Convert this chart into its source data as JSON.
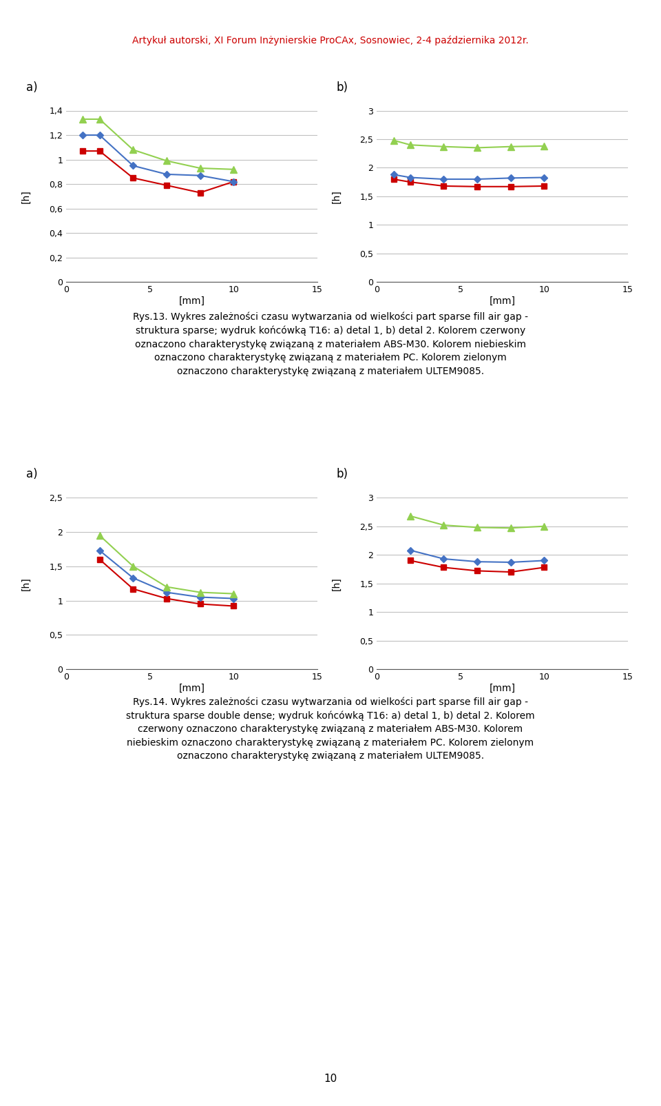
{
  "header": "Artykuł autorski, XI Forum Inżynierskie ProCAx, Sosnowiec, 2-4 października 2012r.",
  "header_color": "#cc0000",
  "xlabel": "[mm]",
  "ylabel_h": "[h]",
  "page_number": "10",
  "caption13": "Rys.13. Wykres zależności czasu wytwarzania od wielkości part sparse fill air gap -\nstruktura sparse; wydruk końcówką T16: a) detal 1, b) detal 2. Kolorem czerwony\noznaczono charakterystykę związaną z materiałem ABS-M30. Kolorem niebieskim\noznaczono charakterystykę związaną z materiałem PC. Kolorem zielonym\noznaczono charakterystykę związaną z materiałem ULTEM9085.",
  "caption14": "Rys.14. Wykres zależności czasu wytwarzania od wielkości part sparse fill air gap -\nstruktura sparse double dense; wydruk końcówką T16: a) detal 1, b) detal 2. Kolorem\nczerwony oznaczono charakterystykę związaną z materiałem ABS-M30. Kolorem\nniebieskim oznaczono charakterystykę związaną z materiałem PC. Kolorem zielonym\noznaczono charakterystykę związaną z materiałem ULTEM9085.",
  "color_red": "#cc0000",
  "color_blue": "#4472c4",
  "color_green": "#92d050",
  "chart1a": {
    "x": [
      1,
      2,
      4,
      6,
      8,
      10
    ],
    "red": [
      1.07,
      1.07,
      0.85,
      0.79,
      0.73,
      0.82
    ],
    "blue": [
      1.2,
      1.2,
      0.95,
      0.88,
      0.87,
      0.82
    ],
    "green": [
      1.33,
      1.33,
      1.08,
      0.99,
      0.93,
      0.92
    ],
    "xlim": [
      0,
      15
    ],
    "ylim": [
      0,
      1.4
    ],
    "yticks": [
      0,
      0.2,
      0.4,
      0.6,
      0.8,
      1.0,
      1.2,
      1.4
    ]
  },
  "chart1b": {
    "x": [
      1,
      2,
      4,
      6,
      8,
      10
    ],
    "red": [
      1.8,
      1.75,
      1.68,
      1.67,
      1.67,
      1.68
    ],
    "blue": [
      1.88,
      1.83,
      1.8,
      1.8,
      1.82,
      1.83
    ],
    "green": [
      2.48,
      2.4,
      2.37,
      2.35,
      2.37,
      2.38
    ],
    "xlim": [
      0,
      15
    ],
    "ylim": [
      0,
      3
    ],
    "yticks": [
      0,
      0.5,
      1.0,
      1.5,
      2.0,
      2.5,
      3.0
    ]
  },
  "chart2a": {
    "x": [
      2,
      4,
      6,
      8,
      10
    ],
    "red": [
      1.6,
      1.17,
      1.03,
      0.95,
      0.92
    ],
    "blue": [
      1.73,
      1.33,
      1.12,
      1.05,
      1.03
    ],
    "green": [
      1.95,
      1.5,
      1.2,
      1.12,
      1.1
    ],
    "xlim": [
      0,
      15
    ],
    "ylim": [
      0,
      2.5
    ],
    "yticks": [
      0,
      0.5,
      1.0,
      1.5,
      2.0,
      2.5
    ]
  },
  "chart2b": {
    "x": [
      2,
      4,
      6,
      8,
      10
    ],
    "red": [
      1.9,
      1.78,
      1.72,
      1.7,
      1.78
    ],
    "blue": [
      2.08,
      1.93,
      1.88,
      1.87,
      1.9
    ],
    "green": [
      2.68,
      2.52,
      2.48,
      2.47,
      2.5
    ],
    "xlim": [
      0,
      15
    ],
    "ylim": [
      0,
      3
    ],
    "yticks": [
      0,
      0.5,
      1.0,
      1.5,
      2.0,
      2.5,
      3.0
    ]
  }
}
